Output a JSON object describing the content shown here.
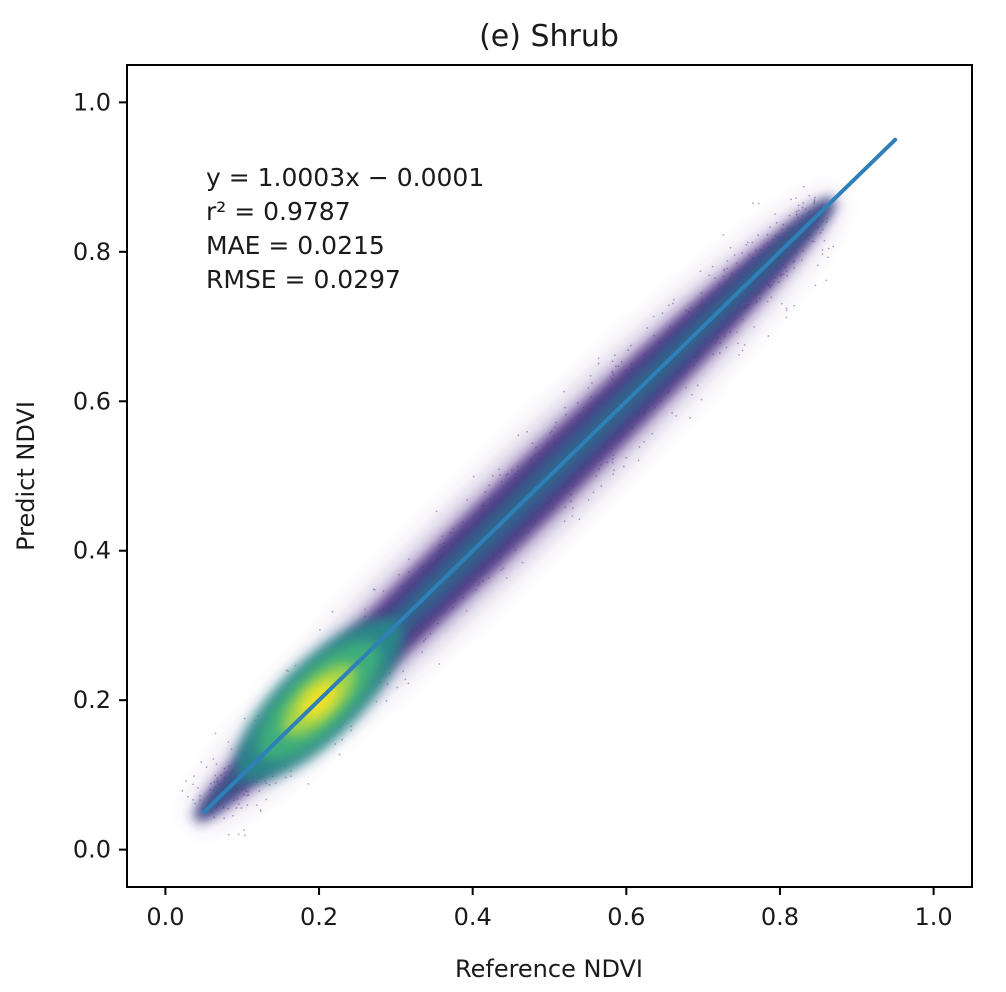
{
  "chart_data": {
    "type": "scatter",
    "title": "(e) Shrub",
    "xlabel": "Reference NDVI",
    "ylabel": "Predict NDVI",
    "xlim": [
      -0.05,
      1.05
    ],
    "ylim": [
      -0.05,
      1.05
    ],
    "xticks": [
      "0.0",
      "0.2",
      "0.4",
      "0.6",
      "0.8",
      "1.0"
    ],
    "yticks": [
      "0.0",
      "0.2",
      "0.4",
      "0.6",
      "0.8",
      "1.0"
    ],
    "annotations": {
      "equation": "y = 1.0003x − 0.0001",
      "r2": "r² = 0.9787",
      "mae": "MAE = 0.0215",
      "rmse": "RMSE = 0.0297"
    },
    "fit_line": {
      "x": [
        0.05,
        0.95
      ],
      "y": [
        0.05,
        0.95
      ]
    },
    "density": {
      "colormap": "viridis",
      "x_range": [
        0.05,
        0.86
      ],
      "peak": [
        0.2,
        0.2
      ]
    },
    "colors": {
      "fit_line": "#2f7fb8"
    }
  }
}
